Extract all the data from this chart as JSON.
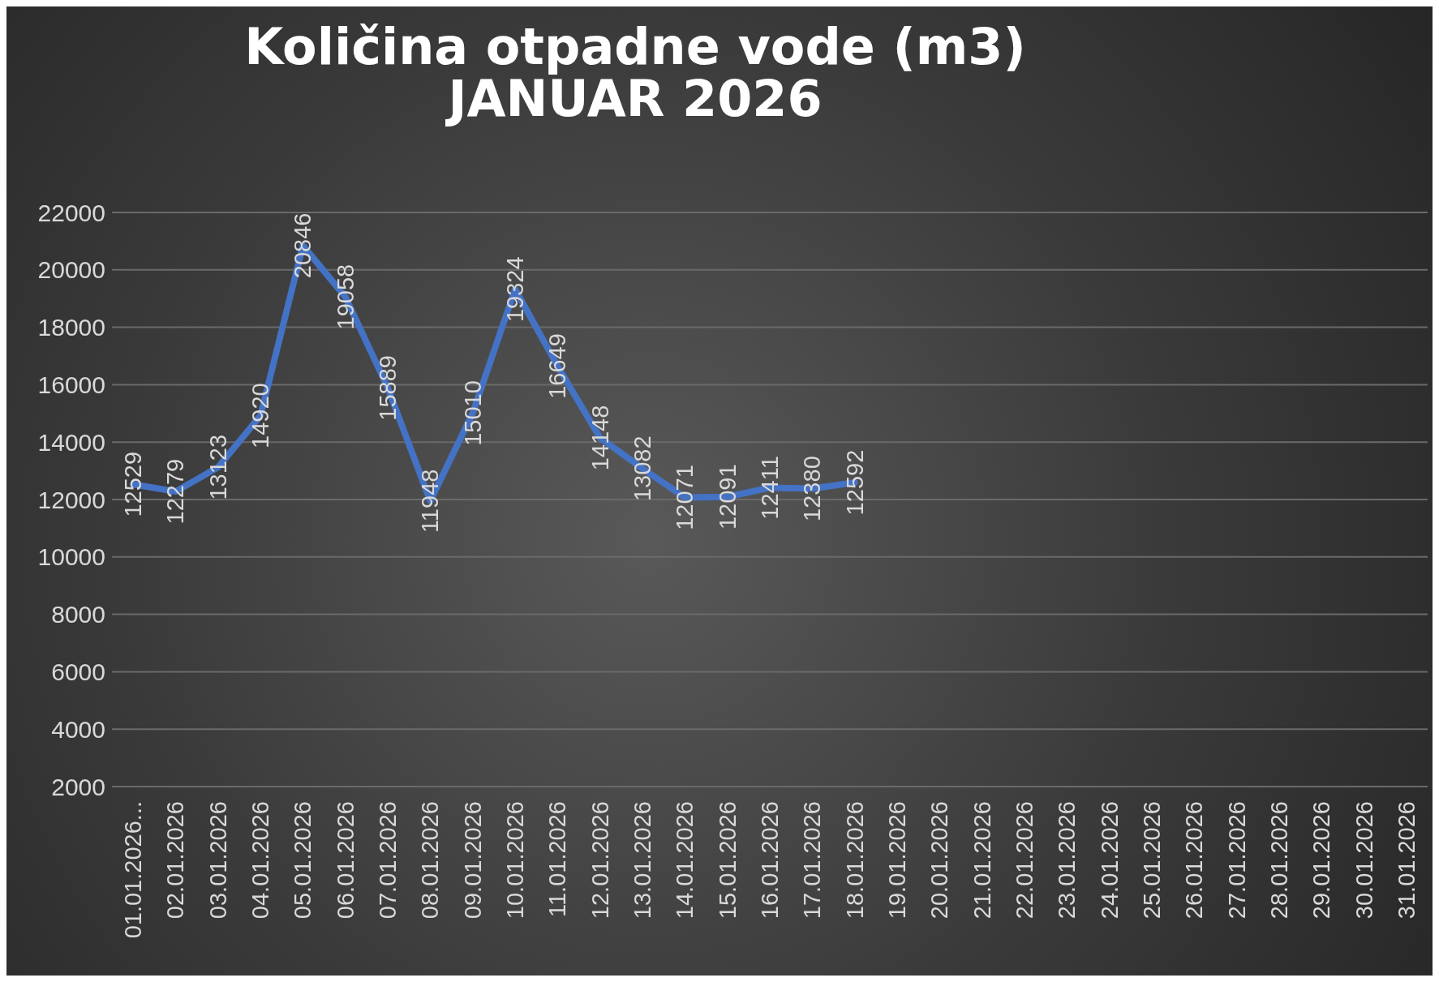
{
  "chart_data": {
    "type": "line",
    "title": "Količina otpadne vode (m3)\nJANUAR 2026",
    "categories": [
      "01.01.2026...",
      "02.01.2026",
      "03.01.2026",
      "04.01.2026",
      "05.01.2026",
      "06.01.2026",
      "07.01.2026",
      "08.01.2026",
      "09.01.2026",
      "10.01.2026",
      "11.01.2026",
      "12.01.2026",
      "13.01.2026",
      "14.01.2026",
      "15.01.2026",
      "16.01.2026",
      "17.01.2026",
      "18.01.2026",
      "19.01.2026",
      "20.01.2026",
      "21.01.2026",
      "22.01.2026",
      "23.01.2026",
      "24.01.2026",
      "25.01.2026",
      "26.01.2026",
      "27.01.2026",
      "28.01.2026",
      "29.01.2026",
      "30.01.2026",
      "31.01.2026"
    ],
    "series": [
      {
        "color": "#4472c4",
        "values": [
          12529,
          12279,
          13123,
          14920,
          20846,
          19058,
          15889,
          11948,
          15010,
          19324,
          16649,
          14148,
          13082,
          12071,
          12091,
          12411,
          12380,
          12592,
          null,
          null,
          null,
          null,
          null,
          null,
          null,
          null,
          null,
          null,
          null,
          null,
          null
        ]
      }
    ],
    "ylim": [
      2000,
      22000
    ],
    "yticks": [
      2000,
      4000,
      6000,
      8000,
      10000,
      12000,
      14000,
      16000,
      18000,
      20000,
      22000
    ],
    "grid": "y",
    "marker": "none",
    "line_style": "solid",
    "data_labels": true
  }
}
